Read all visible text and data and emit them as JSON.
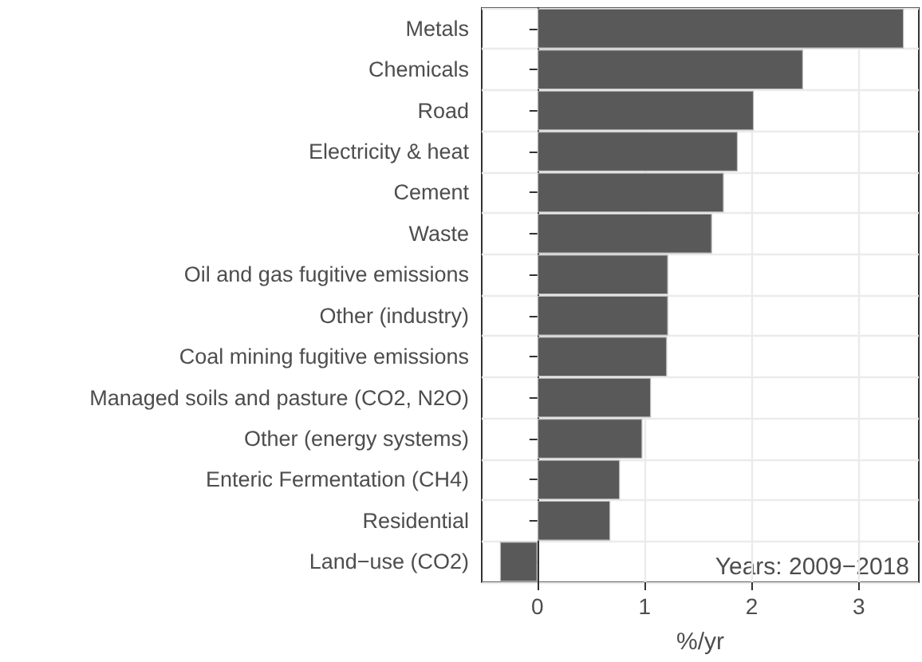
{
  "chart_data": {
    "type": "bar",
    "orientation": "horizontal",
    "xlabel": "%/yr",
    "categories": [
      "Metals",
      "Chemicals",
      "Road",
      "Electricity & heat",
      "Cement",
      "Waste",
      "Oil and gas fugitive emissions",
      "Other (industry)",
      "Coal mining fugitive emissions",
      "Managed soils and pasture (CO2, N2O)",
      "Other (energy systems)",
      "Enteric Fermentation (CH4)",
      "Residential",
      "Land−use (CO2)"
    ],
    "values": [
      3.42,
      2.48,
      2.02,
      1.87,
      1.74,
      1.63,
      1.22,
      1.22,
      1.21,
      1.06,
      0.98,
      0.77,
      0.68,
      -0.35
    ],
    "color": "#595959",
    "xlim": [
      -0.52,
      3.56
    ],
    "xticks": [
      0,
      1,
      2,
      3
    ],
    "grid": true,
    "annotations": [
      "Years: 2009−2018"
    ]
  }
}
